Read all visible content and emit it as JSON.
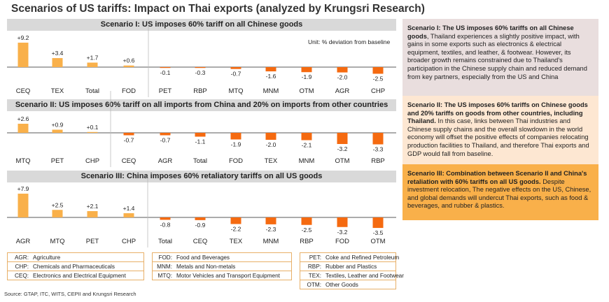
{
  "title": "Scenarios of US tariffs: Impact on Thai exports (analyzed by Krungsri Research)",
  "unit_note": "Unit: % deviation from baseline",
  "colors": {
    "positive": "#f9b04a",
    "negative": "#f56a10",
    "banner": "#d9d9d9",
    "desc1": "#e9dede",
    "desc2": "#fde7d2",
    "desc3": "#f9b04a"
  },
  "chart_data": [
    {
      "type": "bar",
      "title": "Scenario I: US imposes 60% tariff on all Chinese goods",
      "categories": [
        "CEQ",
        "TEX",
        "Total",
        "FOD",
        "PET",
        "RBP",
        "MTQ",
        "MNM",
        "OTM",
        "AGR",
        "CHP"
      ],
      "values": [
        9.2,
        3.4,
        1.7,
        0.6,
        -0.1,
        -0.3,
        -0.7,
        -1.6,
        -1.9,
        -2.0,
        -2.5
      ],
      "labels": [
        "+9.2",
        "+3.4",
        "+1.7",
        "+0.6",
        "-0.1",
        "-0.3",
        "-0.7",
        "-1.6",
        "-1.9",
        "-2.0",
        "-2.5"
      ]
    },
    {
      "type": "bar",
      "title": "Scenario II: US imposes 60% tariff on all imports from China and 20% on imports from other countries",
      "categories": [
        "MTQ",
        "PET",
        "CHP",
        "CEQ",
        "AGR",
        "Total",
        "FOD",
        "TEX",
        "MNM",
        "OTM",
        "RBP"
      ],
      "values": [
        2.6,
        0.9,
        0.1,
        -0.7,
        -0.7,
        -1.1,
        -1.9,
        -2.0,
        -2.1,
        -3.2,
        -3.3
      ],
      "labels": [
        "+2.6",
        "+0.9",
        "+0.1",
        "-0.7",
        "-0.7",
        "-1.1",
        "-1.9",
        "-2.0",
        "-2.1",
        "-3.2",
        "-3.3"
      ]
    },
    {
      "type": "bar",
      "title": "Scenario III: China imposes 60% retaliatory tariffs on all US goods",
      "categories": [
        "AGR",
        "MTQ",
        "PET",
        "CHP",
        "Total",
        "CEQ",
        "TEX",
        "MNM",
        "RBP",
        "FOD",
        "OTM"
      ],
      "values": [
        7.9,
        2.5,
        2.1,
        1.4,
        -0.8,
        -0.9,
        -2.2,
        -2.3,
        -2.5,
        -3.2,
        -3.5
      ],
      "labels": [
        "+7.9",
        "+2.5",
        "+2.1",
        "+1.4",
        "-0.8",
        "-0.9",
        "-2.2",
        "-2.3",
        "-2.5",
        "-3.2",
        "-3.5"
      ]
    }
  ],
  "descriptions": [
    {
      "bold": "Scenario I: The US imposes 60% tariffs on all Chinese goods",
      "text": ", Thailand experiences a slightly positive impact, with gains in some exports such as electronics & electrical equipment, textiles, and leather, & footwear. However, its broader growth remains constrained due to Thailand's participation in the Chinese supply chain and reduced demand from key partners, especially from the US and China"
    },
    {
      "bold": "Scenario II: The US imposes 60% tariffs on Chinese goods and 20% tariffs on goods from other countries, including Thailand.",
      "text": " In this case, links between Thai industries and Chinese supply chains and the overall slowdown in the world economy will offset the positive effects of companies relocating production facilities to Thailand, and therefore Thai exports and GDP would fall from baseline."
    },
    {
      "bold": "Scenario III: Combination between Scenario II and China's retaliation with 60% tariffs on all US goods.",
      "text": " Despite investment relocation, The negative effects on the US, Chinese, and global demands will undercut Thai exports, such as food & beverages, and rubber & plastics."
    }
  ],
  "legend": [
    [
      {
        "code": "AGR:",
        "name": "Agriculture"
      },
      {
        "code": "CHP:",
        "name": "Chemicals and Pharmaceuticals"
      },
      {
        "code": "CEQ:",
        "name": "Electronics and Electrical Equipment"
      }
    ],
    [
      {
        "code": "FOD:",
        "name": "Food and Beverages"
      },
      {
        "code": "MNM:",
        "name": "Metals and Non-metals"
      },
      {
        "code": "MTQ:",
        "name": "Motor Vehicles and Transport Equipment"
      }
    ],
    [
      {
        "code": "PET:",
        "name": "Coke and Refined Petroleum"
      },
      {
        "code": "RBP:",
        "name": "Rubber and Plastics"
      },
      {
        "code": "TEX:",
        "name": "Textiles, Leather and Footwear"
      },
      {
        "code": "OTM:",
        "name": "Other Goods"
      }
    ]
  ],
  "source": "Source: GTAP, ITC, WITS, CEPII and Krungsri Research"
}
